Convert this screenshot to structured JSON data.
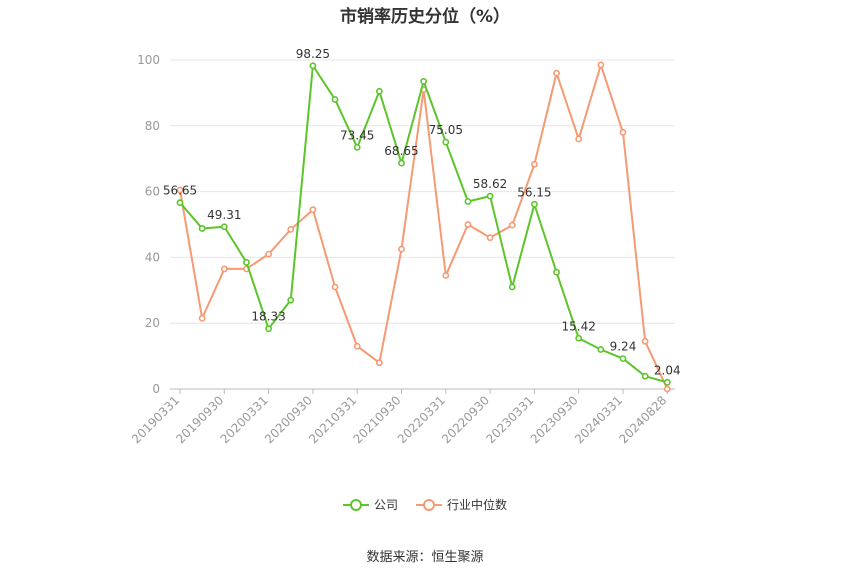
{
  "chart_data": {
    "type": "line",
    "title": "市销率历史分位（%）",
    "source": "数据来源：恒生聚源",
    "x_tick_labels": [
      "20190331",
      "20190930",
      "20200331",
      "20200930",
      "20210331",
      "20210930",
      "20220331",
      "20220930",
      "20230331",
      "20230930",
      "20240331",
      "20240828"
    ],
    "x": [
      "20190331",
      "20190630",
      "20190930",
      "20191231",
      "20200331",
      "20200630",
      "20200930",
      "20201231",
      "20210331",
      "20210630",
      "20210930",
      "20211231",
      "20220331",
      "20220630",
      "20220930",
      "20221231",
      "20230331",
      "20230630",
      "20230930",
      "20231231",
      "20240331",
      "20240630",
      "20240828"
    ],
    "ylim": [
      0,
      100
    ],
    "yticks": [
      0,
      20,
      40,
      60,
      80,
      100
    ],
    "grid": true,
    "legend_position": "bottom",
    "series": [
      {
        "name": "公司",
        "color": "#5cc52a",
        "values": [
          56.65,
          48.8,
          49.31,
          38.5,
          18.33,
          27,
          98.25,
          88,
          73.45,
          90.5,
          68.65,
          93.5,
          75.05,
          57,
          58.62,
          31,
          56.15,
          35.5,
          15.42,
          12,
          9.24,
          3.9,
          2.04
        ],
        "labeled": {
          "0": "56.65",
          "2": "49.31",
          "4": "18.33",
          "6": "98.25",
          "8": "73.45",
          "10": "68.65",
          "12": "75.05",
          "14": "58.62",
          "16": "56.15",
          "18": "15.42",
          "20": "9.24",
          "22": "2.04"
        }
      },
      {
        "name": "行业中位数",
        "color": "#f59a73",
        "values": [
          60.5,
          21.5,
          36.5,
          36.5,
          41,
          48.5,
          54.5,
          31,
          13,
          8,
          42.5,
          91,
          34.5,
          50,
          46,
          49.8,
          68.3,
          96,
          76,
          98.5,
          78,
          14.5,
          0
        ]
      }
    ]
  }
}
